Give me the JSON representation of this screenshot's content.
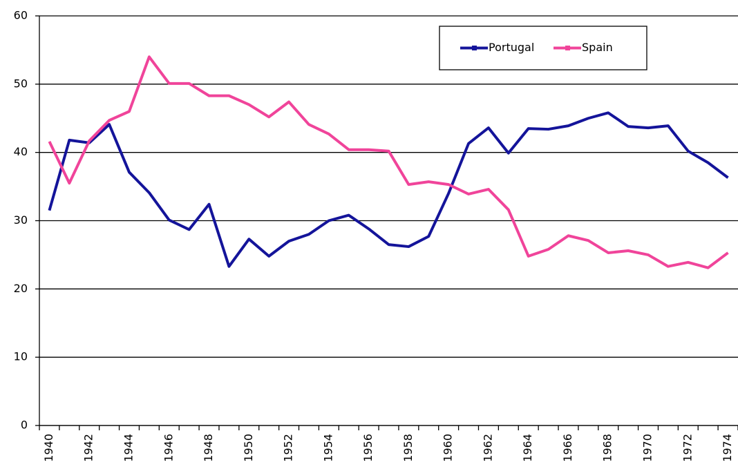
{
  "chart_data": {
    "type": "line",
    "categories": [
      "1940",
      null,
      "1942",
      null,
      "1944",
      null,
      "1946",
      null,
      "1948",
      null,
      "1950",
      null,
      "1952",
      null,
      "1954",
      null,
      "1956",
      null,
      "1958",
      null,
      "1960",
      null,
      "1962",
      null,
      "1964",
      null,
      "1966",
      null,
      "1968",
      null,
      "1970",
      null,
      "1972",
      null,
      "1974"
    ],
    "series": [
      {
        "name": "Portugal",
        "color": "#14149a",
        "values": [
          31.5,
          41.8,
          41.4,
          44.1,
          37.1,
          34.1,
          30.1,
          28.7,
          32.4,
          23.3,
          27.3,
          24.8,
          27.0,
          28.0,
          30.0,
          30.8,
          28.8,
          26.5,
          26.2,
          27.7,
          34.0,
          41.3,
          43.6,
          39.9,
          43.5,
          43.4,
          43.9,
          45.0,
          45.8,
          43.8,
          43.6,
          43.9,
          40.2,
          38.5,
          36.3
        ]
      },
      {
        "name": "Spain",
        "color": "#f0449a",
        "values": [
          41.6,
          35.5,
          41.7,
          44.7,
          46.0,
          54.0,
          50.1,
          50.1,
          48.3,
          48.3,
          47.0,
          45.2,
          47.4,
          44.1,
          42.7,
          40.4,
          40.4,
          40.2,
          35.3,
          35.7,
          35.3,
          33.9,
          34.6,
          31.6,
          24.8,
          25.8,
          27.8,
          27.1,
          25.3,
          25.6,
          25.0,
          23.3,
          23.9,
          23.1,
          25.3
        ]
      }
    ],
    "ylim": [
      0,
      60
    ],
    "yticks": [
      0,
      10,
      20,
      30,
      40,
      50,
      60
    ],
    "grid": true,
    "legend": "top-right"
  }
}
